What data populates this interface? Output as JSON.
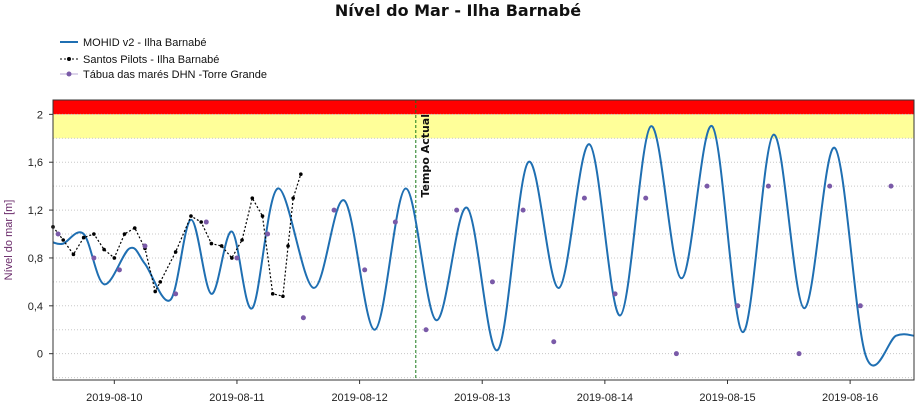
{
  "chart_data": {
    "type": "line",
    "title": "Nível do Mar - Ilha Barnabé",
    "xlabel": "",
    "ylabel": "Nível do mar [m]",
    "x_axis": {
      "type": "date",
      "range": [
        "2019-08-09T12:00",
        "2019-08-16T12:30"
      ],
      "tick_labels": [
        "2019-08-10",
        "2019-08-11",
        "2019-08-12",
        "2019-08-13",
        "2019-08-14",
        "2019-08-15",
        "2019-08-16"
      ]
    },
    "y_axis": {
      "range": [
        -0.22,
        2.12
      ],
      "tick_values": [
        0,
        0.4,
        0.8,
        1.2,
        1.6,
        2
      ],
      "tick_labels": [
        "0",
        "0,4",
        "0,8",
        "1,2",
        "1,6",
        "2"
      ]
    },
    "grid": true,
    "legend": {
      "position": "top-left"
    },
    "bands": [
      {
        "from": 2.0,
        "to": 2.12,
        "color": "#ff0000"
      },
      {
        "from": 1.8,
        "to": 2.0,
        "color": "#ffff99"
      }
    ],
    "vertical_marker": {
      "x": "2019-08-12T11:00",
      "label": "Tempo Actual",
      "color": "#1a7a1a"
    },
    "series": [
      {
        "name": "MOHID v2 - Ilha Barnabé",
        "style": "line",
        "color": "#1f6fb2",
        "x": [
          "2019-08-09T12:00",
          "2019-08-09T14:00",
          "2019-08-09T18:00",
          "2019-08-09T22:00",
          "2019-08-10T03:00",
          "2019-08-10T06:00",
          "2019-08-10T11:00",
          "2019-08-10T15:00",
          "2019-08-10T19:00",
          "2019-08-10T23:00",
          "2019-08-11T03:00",
          "2019-08-11T08:00",
          "2019-08-11T15:00",
          "2019-08-11T21:00",
          "2019-08-12T03:00",
          "2019-08-12T09:00",
          "2019-08-12T15:00",
          "2019-08-12T21:00",
          "2019-08-13T03:00",
          "2019-08-13T09:00",
          "2019-08-13T15:00",
          "2019-08-13T21:00",
          "2019-08-14T03:00",
          "2019-08-14T09:00",
          "2019-08-14T15:00",
          "2019-08-14T21:00",
          "2019-08-15T03:00",
          "2019-08-15T09:00",
          "2019-08-15T15:00",
          "2019-08-15T21:00",
          "2019-08-16T03:00",
          "2019-08-16T09:00",
          "2019-08-16T12:30"
        ],
        "y": [
          0.93,
          0.92,
          1.0,
          0.58,
          0.88,
          0.75,
          0.45,
          1.12,
          0.5,
          1.02,
          0.38,
          1.38,
          0.55,
          1.28,
          0.2,
          1.38,
          0.28,
          1.22,
          0.03,
          1.6,
          0.55,
          1.75,
          0.32,
          1.9,
          0.63,
          1.9,
          0.18,
          1.83,
          0.38,
          1.72,
          -0.01,
          0.15,
          0.15
        ]
      },
      {
        "name": "Santos Pilots - Ilha Barnabé",
        "style": "line-markers",
        "color": "#000000",
        "x": [
          "2019-08-09T12:00",
          "2019-08-09T14:00",
          "2019-08-09T16:00",
          "2019-08-09T18:00",
          "2019-08-09T20:00",
          "2019-08-09T22:00",
          "2019-08-10T00:00",
          "2019-08-10T02:00",
          "2019-08-10T04:00",
          "2019-08-10T06:00",
          "2019-08-10T08:00",
          "2019-08-10T09:00",
          "2019-08-10T12:00",
          "2019-08-10T15:00",
          "2019-08-10T17:00",
          "2019-08-10T19:00",
          "2019-08-10T21:00",
          "2019-08-10T23:00",
          "2019-08-11T01:00",
          "2019-08-11T03:00",
          "2019-08-11T05:00",
          "2019-08-11T07:00",
          "2019-08-11T09:00",
          "2019-08-11T10:00",
          "2019-08-11T11:00",
          "2019-08-11T12:30"
        ],
        "y": [
          1.06,
          0.95,
          0.83,
          0.97,
          1.0,
          0.87,
          0.8,
          1.0,
          1.05,
          0.88,
          0.52,
          0.6,
          0.85,
          1.15,
          1.1,
          0.92,
          0.9,
          0.8,
          0.95,
          1.3,
          1.15,
          0.5,
          0.48,
          0.9,
          1.3,
          1.5
        ]
      },
      {
        "name": "Tábua das marés DHN -Torre Grande",
        "style": "markers",
        "color": "#7a5aa8",
        "x": [
          "2019-08-09T13:00",
          "2019-08-09T20:00",
          "2019-08-10T01:00",
          "2019-08-10T06:00",
          "2019-08-10T12:00",
          "2019-08-10T18:00",
          "2019-08-11T00:00",
          "2019-08-11T06:00",
          "2019-08-11T13:00",
          "2019-08-11T19:00",
          "2019-08-12T01:00",
          "2019-08-12T07:00",
          "2019-08-12T13:00",
          "2019-08-12T19:00",
          "2019-08-13T02:00",
          "2019-08-13T08:00",
          "2019-08-13T14:00",
          "2019-08-13T20:00",
          "2019-08-14T02:00",
          "2019-08-14T08:00",
          "2019-08-14T14:00",
          "2019-08-14T20:00",
          "2019-08-15T02:00",
          "2019-08-15T08:00",
          "2019-08-15T14:00",
          "2019-08-15T20:00",
          "2019-08-16T02:00",
          "2019-08-16T08:00"
        ],
        "y": [
          1.0,
          0.8,
          0.7,
          0.9,
          0.5,
          1.1,
          0.8,
          1.0,
          0.3,
          1.2,
          0.7,
          1.1,
          0.2,
          1.2,
          0.6,
          1.2,
          0.1,
          1.3,
          0.5,
          1.3,
          0.0,
          1.4,
          0.4,
          1.4,
          0.0,
          1.4,
          0.4,
          1.4
        ]
      }
    ]
  }
}
